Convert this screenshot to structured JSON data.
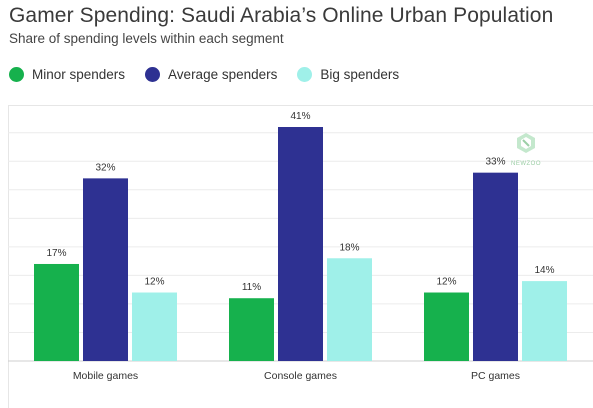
{
  "header": {
    "title": "Gamer Spending: Saudi Arabia’s Online Urban Population",
    "subtitle": "Share of spending levels within each segment"
  },
  "legend": {
    "items": [
      {
        "label": "Minor spenders",
        "color": "#16b14d"
      },
      {
        "label": "Average spenders",
        "color": "#2e3192"
      },
      {
        "label": "Big spenders",
        "color": "#9ff0e9"
      }
    ]
  },
  "watermark": {
    "text": "NEWZOO",
    "icon": "newzoo-logo-icon"
  },
  "chart_data": {
    "type": "bar",
    "categories": [
      "Mobile games",
      "Console games",
      "PC games"
    ],
    "series": [
      {
        "name": "Minor spenders",
        "values": [
          17,
          11,
          12
        ],
        "labels": [
          "17%",
          "11%",
          "12%"
        ],
        "color": "#16b14d"
      },
      {
        "name": "Average spenders",
        "values": [
          32,
          41,
          33
        ],
        "labels": [
          "32%",
          "41%",
          "33%"
        ],
        "color": "#2e3192"
      },
      {
        "name": "Big spenders",
        "values": [
          12,
          18,
          14
        ],
        "labels": [
          "12%",
          "18%",
          "14%"
        ],
        "color": "#9ff0e9"
      }
    ],
    "title": "Gamer Spending: Saudi Arabia’s Online Urban Population",
    "subtitle": "Share of spending levels within each segment",
    "xlabel": "",
    "ylabel": "",
    "ylim": [
      0,
      45
    ],
    "grid": true,
    "legend_position": "top-left"
  }
}
